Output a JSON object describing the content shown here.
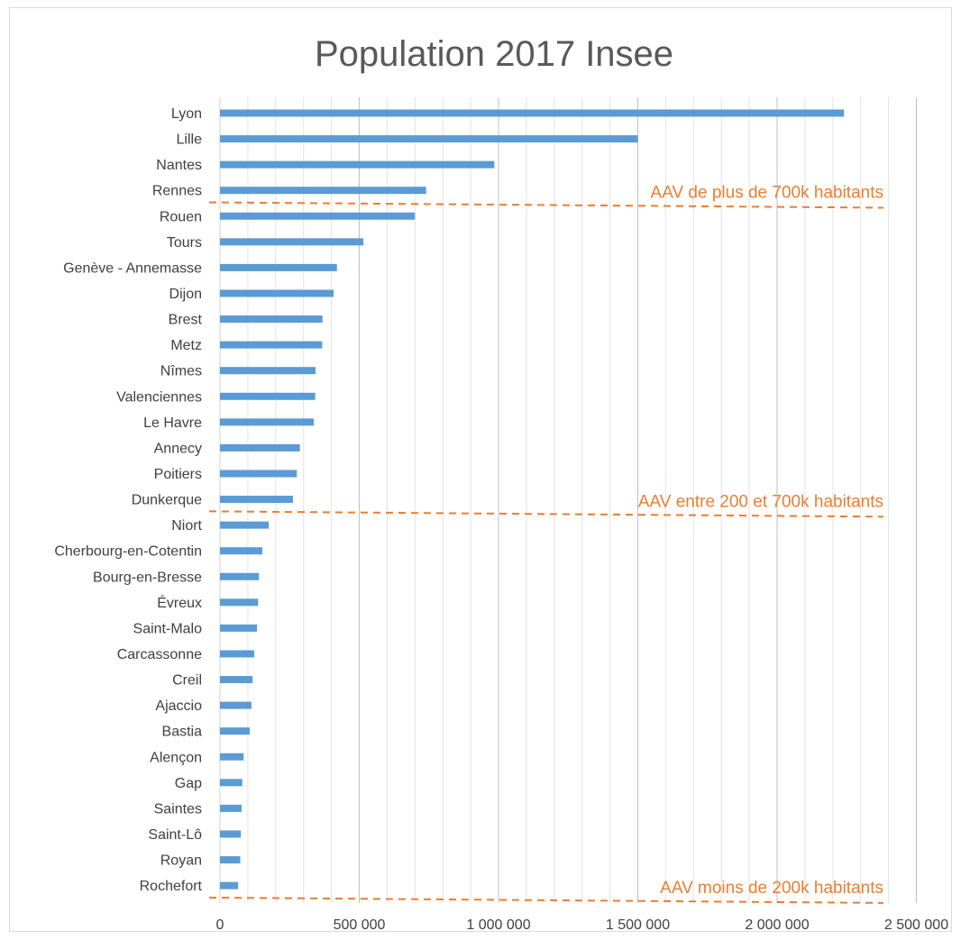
{
  "chart_data": {
    "type": "bar",
    "orientation": "horizontal",
    "title": "Population 2017 Insee",
    "xlabel": "",
    "ylabel": "",
    "xlim": [
      0,
      2500000
    ],
    "grid": "vertical",
    "bar_color": "#5b9bd5",
    "threshold_color": "#ed7d31",
    "x_ticks": [
      "0",
      "500 000",
      "1 000 000",
      "1 500 000",
      "2 000 000",
      "2 500 000"
    ],
    "categories": [
      "Lyon",
      "Lille",
      "Nantes",
      "Rennes",
      "Rouen",
      "Tours",
      "Genève - Annemasse",
      "Dijon",
      "Brest",
      "Metz",
      "Nîmes",
      "Valenciennes",
      "Le Havre",
      "Annecy",
      "Poitiers",
      "Dunkerque",
      "Niort",
      "Cherbourg-en-Cotentin",
      "Bourg-en-Bresse",
      "Évreux",
      "Saint-Malo",
      "Carcassonne",
      "Creil",
      "Ajaccio",
      "Bastia",
      "Alençon",
      "Gap",
      "Saintes",
      "Saint-Lô",
      "Royan",
      "Rochefort"
    ],
    "values": [
      2240000,
      1500000,
      985000,
      740000,
      700000,
      515000,
      420000,
      408000,
      368000,
      367000,
      343000,
      342000,
      337000,
      287000,
      276000,
      262000,
      175000,
      152000,
      140000,
      137000,
      133000,
      123000,
      117000,
      113000,
      107000,
      85000,
      80000,
      78000,
      75000,
      73000,
      65000
    ],
    "annotations": [
      {
        "text": "AAV de plus de 700k habitants",
        "after_category": "Rennes"
      },
      {
        "text": "AAV entre 200 et 700k habitants",
        "after_category": "Dunkerque"
      },
      {
        "text": "AAV moins de 200k habitants",
        "after_category": "Rochefort"
      }
    ]
  }
}
